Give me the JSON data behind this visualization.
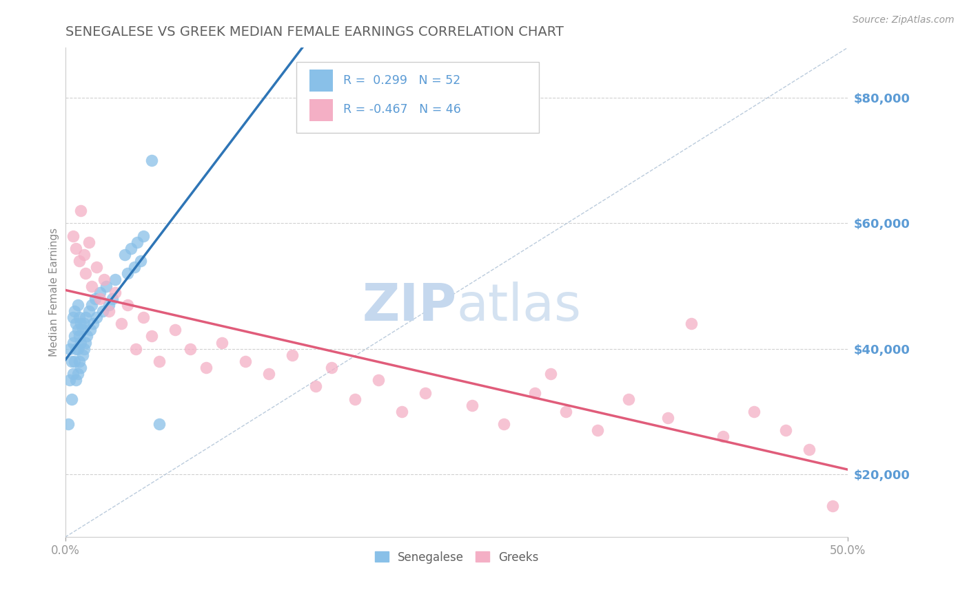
{
  "title": "SENEGALESE VS GREEK MEDIAN FEMALE EARNINGS CORRELATION CHART",
  "source": "Source: ZipAtlas.com",
  "ylabel": "Median Female Earnings",
  "xlim": [
    0.0,
    0.5
  ],
  "ylim": [
    10000,
    88000
  ],
  "xtick_positions": [
    0.0,
    0.5
  ],
  "xticklabels": [
    "0.0%",
    "50.0%"
  ],
  "yticks_right": [
    20000,
    40000,
    60000,
    80000
  ],
  "ytick_labels_right": [
    "$20,000",
    "$40,000",
    "$60,000",
    "$80,000"
  ],
  "senegalese_color": "#89c0e8",
  "greeks_color": "#f4afc5",
  "senegalese_R": 0.299,
  "senegalese_N": 52,
  "greeks_R": -0.467,
  "greeks_N": 46,
  "background_color": "#ffffff",
  "grid_color": "#d0d0d0",
  "title_color": "#606060",
  "right_label_color": "#5b9bd5",
  "legend_R_color": "#5b9bd5",
  "watermark_color": "#c5d8ee",
  "sen_trend_color": "#2e75b6",
  "greek_trend_color": "#e05c7a",
  "diag_color": "#aabfd4",
  "senegalese_x": [
    0.002,
    0.003,
    0.003,
    0.004,
    0.004,
    0.005,
    0.005,
    0.005,
    0.006,
    0.006,
    0.006,
    0.007,
    0.007,
    0.007,
    0.008,
    0.008,
    0.008,
    0.008,
    0.009,
    0.009,
    0.009,
    0.01,
    0.01,
    0.01,
    0.011,
    0.011,
    0.012,
    0.012,
    0.013,
    0.013,
    0.014,
    0.015,
    0.016,
    0.017,
    0.018,
    0.019,
    0.02,
    0.022,
    0.024,
    0.026,
    0.028,
    0.03,
    0.032,
    0.038,
    0.04,
    0.042,
    0.044,
    0.046,
    0.048,
    0.05,
    0.055,
    0.06
  ],
  "senegalese_y": [
    28000,
    35000,
    40000,
    32000,
    38000,
    36000,
    41000,
    45000,
    38000,
    42000,
    46000,
    35000,
    40000,
    44000,
    36000,
    40000,
    43000,
    47000,
    38000,
    42000,
    45000,
    37000,
    41000,
    44000,
    39000,
    43000,
    40000,
    44000,
    41000,
    45000,
    42000,
    46000,
    43000,
    47000,
    44000,
    48000,
    45000,
    49000,
    46000,
    50000,
    47000,
    48000,
    51000,
    55000,
    52000,
    56000,
    53000,
    57000,
    54000,
    58000,
    70000,
    28000
  ],
  "greeks_x": [
    0.005,
    0.007,
    0.009,
    0.01,
    0.012,
    0.013,
    0.015,
    0.017,
    0.02,
    0.022,
    0.025,
    0.028,
    0.032,
    0.036,
    0.04,
    0.045,
    0.05,
    0.055,
    0.06,
    0.07,
    0.08,
    0.09,
    0.1,
    0.115,
    0.13,
    0.145,
    0.16,
    0.17,
    0.185,
    0.2,
    0.215,
    0.23,
    0.26,
    0.28,
    0.3,
    0.32,
    0.34,
    0.36,
    0.385,
    0.4,
    0.42,
    0.44,
    0.46,
    0.475,
    0.49,
    0.31
  ],
  "greeks_y": [
    58000,
    56000,
    54000,
    62000,
    55000,
    52000,
    57000,
    50000,
    53000,
    48000,
    51000,
    46000,
    49000,
    44000,
    47000,
    40000,
    45000,
    42000,
    38000,
    43000,
    40000,
    37000,
    41000,
    38000,
    36000,
    39000,
    34000,
    37000,
    32000,
    35000,
    30000,
    33000,
    31000,
    28000,
    33000,
    30000,
    27000,
    32000,
    29000,
    44000,
    26000,
    30000,
    27000,
    24000,
    15000,
    36000
  ]
}
